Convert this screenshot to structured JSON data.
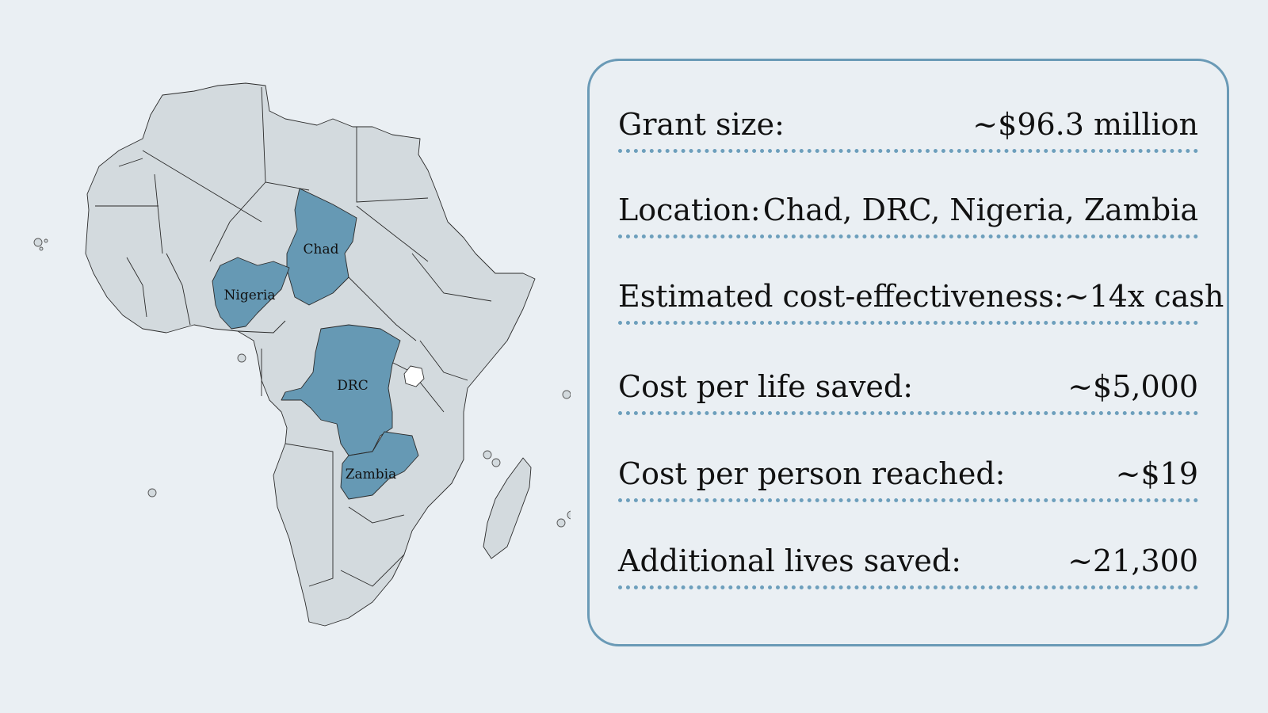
{
  "map": {
    "labels": {
      "chad": "Chad",
      "nigeria": "Nigeria",
      "drc": "DRC",
      "zambia": "Zambia"
    },
    "colors": {
      "highlight": "#6699b4",
      "land": "#d3dade",
      "background": "#eaeff3"
    }
  },
  "details": [
    {
      "label": "Grant size:",
      "value": "~$96.3 million"
    },
    {
      "label": "Location:",
      "value": "Chad, DRC, Nigeria, Zambia"
    },
    {
      "label": "Estimated cost-effectiveness:",
      "value": "~14x cash"
    },
    {
      "label": "Cost per life saved:",
      "value": "~$5,000"
    },
    {
      "label": "Cost per person reached:",
      "value": "~$19"
    },
    {
      "label": "Additional lives saved:",
      "value": "~21,300"
    }
  ],
  "card_border_color": "#6a9ab6"
}
